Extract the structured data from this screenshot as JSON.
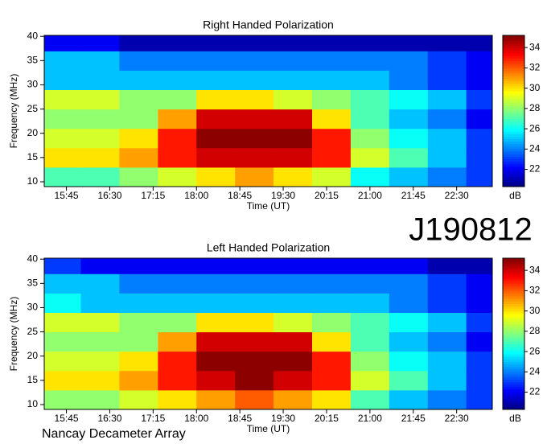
{
  "chart_data": [
    {
      "type": "heatmap",
      "title": "Right Handed Polarization",
      "x_label": "Time (UT)",
      "y_label": "Frequency (MHz)",
      "colorbar_label": "dB",
      "colormap": "jet",
      "time_bins": [
        922,
        960,
        1000,
        1040,
        1080,
        1120,
        1160,
        1200,
        1240,
        1280,
        1320,
        1360,
        1387
      ],
      "freq_bins": [
        9,
        13,
        17,
        21,
        25,
        29,
        33,
        37,
        40.2
      ],
      "z": [
        [
          27,
          27,
          28,
          29,
          30,
          31,
          30,
          29,
          26,
          25,
          24,
          23
        ],
        [
          30,
          30,
          31,
          33,
          34,
          34,
          34,
          33,
          29,
          27,
          25,
          23
        ],
        [
          29,
          29,
          30,
          33,
          35,
          35,
          35,
          33,
          28,
          26,
          25,
          23
        ],
        [
          28,
          28,
          28,
          31,
          34,
          34,
          34,
          30,
          27,
          25,
          24,
          22
        ],
        [
          29,
          29,
          28,
          28,
          30,
          30,
          29,
          28,
          27,
          26,
          25,
          23
        ],
        [
          25,
          25,
          25,
          25,
          25,
          25,
          25,
          25,
          25,
          24,
          23,
          22
        ],
        [
          25,
          25,
          24,
          24,
          24,
          24,
          24,
          24,
          24,
          24,
          23,
          22
        ],
        [
          22,
          22,
          21,
          21,
          21,
          21,
          21,
          21,
          21,
          21,
          21,
          21
        ]
      ],
      "xlim": [
        922,
        1387
      ],
      "ylim": [
        9,
        40.2
      ],
      "zlim": [
        20.3,
        35.2
      ],
      "xticks": [
        {
          "value": 945,
          "label": "15:45"
        },
        {
          "value": 990,
          "label": "16:30"
        },
        {
          "value": 1035,
          "label": "17:15"
        },
        {
          "value": 1080,
          "label": "18:00"
        },
        {
          "value": 1125,
          "label": "18:45"
        },
        {
          "value": 1170,
          "label": "19:30"
        },
        {
          "value": 1215,
          "label": "20:15"
        },
        {
          "value": 1260,
          "label": "21:00"
        },
        {
          "value": 1305,
          "label": "21:45"
        },
        {
          "value": 1350,
          "label": "22:30"
        }
      ],
      "yticks": [
        10,
        15,
        20,
        25,
        30,
        35,
        40
      ],
      "zticks": [
        22,
        24,
        26,
        28,
        30,
        32,
        34
      ]
    },
    {
      "type": "heatmap",
      "title": "Left Handed Polarization",
      "x_label": "Time (UT)",
      "y_label": "Frequency (MHz)",
      "colorbar_label": "dB",
      "colormap": "jet",
      "time_bins": [
        922,
        960,
        1000,
        1040,
        1080,
        1120,
        1160,
        1200,
        1240,
        1280,
        1320,
        1360,
        1387
      ],
      "freq_bins": [
        9,
        13,
        17,
        21,
        25,
        29,
        33,
        37,
        40.2
      ],
      "z": [
        [
          28,
          28,
          29,
          30,
          31,
          32,
          31,
          30,
          27,
          25,
          24,
          23
        ],
        [
          30,
          30,
          31,
          33,
          34,
          35,
          34,
          33,
          29,
          27,
          25,
          23
        ],
        [
          29,
          29,
          30,
          33,
          35,
          35,
          35,
          33,
          28,
          26,
          25,
          23
        ],
        [
          28,
          28,
          28,
          31,
          34,
          34,
          34,
          30,
          27,
          25,
          24,
          22
        ],
        [
          29,
          29,
          28,
          28,
          30,
          30,
          29,
          28,
          27,
          26,
          25,
          23
        ],
        [
          26,
          25,
          25,
          25,
          25,
          25,
          25,
          25,
          25,
          24,
          23,
          22
        ],
        [
          25,
          25,
          24,
          24,
          24,
          24,
          24,
          24,
          24,
          24,
          23,
          22
        ],
        [
          23,
          22,
          22,
          22,
          22,
          22,
          22,
          22,
          22,
          22,
          21,
          21
        ]
      ],
      "xlim": [
        922,
        1387
      ],
      "ylim": [
        9,
        40.2
      ],
      "zlim": [
        20.3,
        35.2
      ],
      "xticks": [
        {
          "value": 945,
          "label": "15:45"
        },
        {
          "value": 990,
          "label": "16:30"
        },
        {
          "value": 1035,
          "label": "17:15"
        },
        {
          "value": 1080,
          "label": "18:00"
        },
        {
          "value": 1125,
          "label": "18:45"
        },
        {
          "value": 1170,
          "label": "19:30"
        },
        {
          "value": 1215,
          "label": "20:15"
        },
        {
          "value": 1260,
          "label": "21:00"
        },
        {
          "value": 1305,
          "label": "21:45"
        },
        {
          "value": 1350,
          "label": "22:30"
        }
      ],
      "yticks": [
        10,
        15,
        20,
        25,
        30,
        35,
        40
      ],
      "zticks": [
        22,
        24,
        26,
        28,
        30,
        32,
        34
      ]
    }
  ],
  "label": "J190812",
  "footer": "Nancay Decameter Array"
}
